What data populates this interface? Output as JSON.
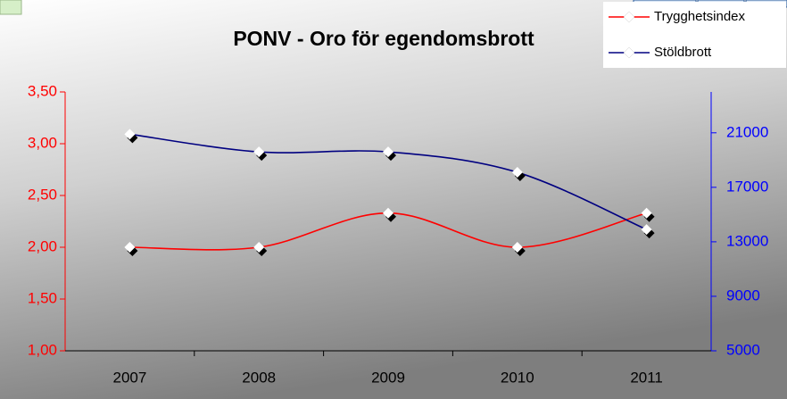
{
  "chart_data": {
    "type": "line",
    "title": "PONV - Oro för egendomsbrott",
    "categories": [
      "2007",
      "2008",
      "2009",
      "2010",
      "2011"
    ],
    "series": [
      {
        "name": "Trygghetsindex",
        "color": "#ff0000",
        "values": [
          2.0,
          2.0,
          2.33,
          2.0,
          2.33
        ]
      },
      {
        "name": "Stöldbrott",
        "color": "#000080",
        "axis": "y2",
        "values": [
          20900,
          19600,
          19600,
          18100,
          13900
        ]
      }
    ],
    "ylim": [
      1.0,
      3.5
    ],
    "yticks": [
      {
        "value": 1.0,
        "label": "1,00"
      },
      {
        "value": 1.5,
        "label": "1,50"
      },
      {
        "value": 2.0,
        "label": "2,00"
      },
      {
        "value": 2.5,
        "label": "2,50"
      },
      {
        "value": 3.0,
        "label": "3,00"
      },
      {
        "value": 3.5,
        "label": "3,50"
      }
    ],
    "y2lim": [
      5000,
      24000
    ],
    "y2ticks": [
      5000,
      9000,
      13000,
      17000,
      21000
    ],
    "legend": "top-right",
    "smooth": true
  }
}
